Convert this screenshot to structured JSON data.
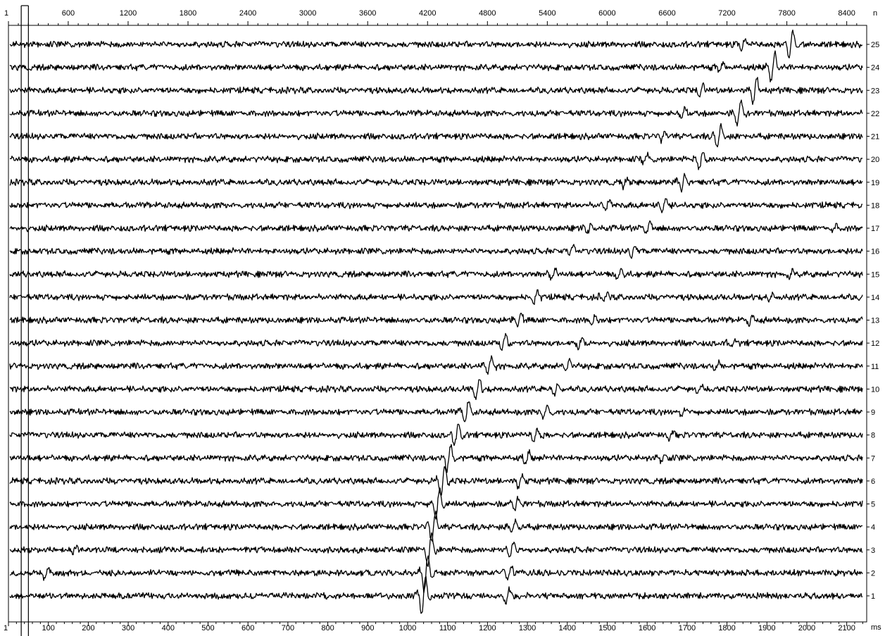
{
  "chart_data": {
    "type": "line",
    "title": "",
    "top_axis": {
      "unit": "n",
      "range": [
        1,
        8600
      ],
      "ticks": [
        {
          "value": 1,
          "label": "1"
        },
        {
          "value": 600,
          "label": "600"
        },
        {
          "value": 1200,
          "label": "1200"
        },
        {
          "value": 1800,
          "label": "1800"
        },
        {
          "value": 2400,
          "label": "2400"
        },
        {
          "value": 3000,
          "label": "3000"
        },
        {
          "value": 3600,
          "label": "3600"
        },
        {
          "value": 4200,
          "label": "4200"
        },
        {
          "value": 4800,
          "label": "4800"
        },
        {
          "value": 5400,
          "label": "5400"
        },
        {
          "value": 6000,
          "label": "6000"
        },
        {
          "value": 6600,
          "label": "6600"
        },
        {
          "value": 7200,
          "label": "7200"
        },
        {
          "value": 7800,
          "label": "7800"
        },
        {
          "value": 8400,
          "label": "8400"
        }
      ]
    },
    "bottom_axis": {
      "unit": "ms",
      "range": [
        0,
        2150
      ],
      "ticks": [
        {
          "value": 0,
          "label": "1"
        },
        {
          "value": 100,
          "label": "100"
        },
        {
          "value": 200,
          "label": "200"
        },
        {
          "value": 300,
          "label": "300"
        },
        {
          "value": 400,
          "label": "400"
        },
        {
          "value": 500,
          "label": "500"
        },
        {
          "value": 600,
          "label": "600"
        },
        {
          "value": 700,
          "label": "700"
        },
        {
          "value": 800,
          "label": "800"
        },
        {
          "value": 900,
          "label": "900"
        },
        {
          "value": 1000,
          "label": "1000"
        },
        {
          "value": 1100,
          "label": "1100"
        },
        {
          "value": 1200,
          "label": "1200"
        },
        {
          "value": 1300,
          "label": "1300"
        },
        {
          "value": 1400,
          "label": "1400"
        },
        {
          "value": 1500,
          "label": "1500"
        },
        {
          "value": 1600,
          "label": "1600"
        },
        {
          "value": 1700,
          "label": "1700"
        },
        {
          "value": 1800,
          "label": "1800"
        },
        {
          "value": 1900,
          "label": "1900"
        },
        {
          "value": 2000,
          "label": "2000"
        },
        {
          "value": 2100,
          "label": "2100"
        }
      ]
    },
    "trace_axis": {
      "labels": [
        "1",
        "2",
        "3",
        "4",
        "5",
        "6",
        "7",
        "8",
        "9",
        "10",
        "11",
        "12",
        "13",
        "14",
        "15",
        "16",
        "17",
        "18",
        "19",
        "20",
        "21",
        "22",
        "23",
        "24",
        "25"
      ]
    },
    "markers_ms": [
      32,
      50
    ],
    "series": [
      {
        "label": "1",
        "events": [
          {
            "t": 1040,
            "amp": 3.6
          },
          {
            "t": 1250,
            "amp": 1.3
          }
        ]
      },
      {
        "label": "2",
        "events": [
          {
            "t": 95,
            "amp": 1.2
          },
          {
            "t": 1046,
            "amp": 3.4
          },
          {
            "t": 1255,
            "amp": 1.3
          }
        ]
      },
      {
        "label": "3",
        "events": [
          {
            "t": 165,
            "amp": 0.7
          },
          {
            "t": 1055,
            "amp": 3.2
          },
          {
            "t": 1260,
            "amp": 1.3
          }
        ]
      },
      {
        "label": "4",
        "events": [
          {
            "t": 1065,
            "amp": 3.0
          },
          {
            "t": 1265,
            "amp": 1.2
          }
        ]
      },
      {
        "label": "5",
        "events": [
          {
            "t": 1075,
            "amp": 2.8
          },
          {
            "t": 1272,
            "amp": 1.2
          }
        ]
      },
      {
        "label": "6",
        "events": [
          {
            "t": 1088,
            "amp": 2.6
          },
          {
            "t": 1282,
            "amp": 1.2
          }
        ]
      },
      {
        "label": "7",
        "events": [
          {
            "t": 1103,
            "amp": 2.4
          },
          {
            "t": 1300,
            "amp": 1.2
          },
          {
            "t": 1640,
            "amp": 0.7
          }
        ]
      },
      {
        "label": "8",
        "events": [
          {
            "t": 1122,
            "amp": 2.2
          },
          {
            "t": 1320,
            "amp": 1.2
          },
          {
            "t": 1660,
            "amp": 0.7
          }
        ]
      },
      {
        "label": "9",
        "events": [
          {
            "t": 1148,
            "amp": 2.0
          },
          {
            "t": 1345,
            "amp": 1.2
          },
          {
            "t": 1690,
            "amp": 0.8
          }
        ]
      },
      {
        "label": "10",
        "events": [
          {
            "t": 1175,
            "amp": 1.8
          },
          {
            "t": 1372,
            "amp": 1.1
          },
          {
            "t": 1730,
            "amp": 0.8
          }
        ]
      },
      {
        "label": "11",
        "events": [
          {
            "t": 1205,
            "amp": 1.6
          },
          {
            "t": 1400,
            "amp": 1.1
          },
          {
            "t": 1775,
            "amp": 0.8
          }
        ]
      },
      {
        "label": "12",
        "events": [
          {
            "t": 1240,
            "amp": 1.4
          },
          {
            "t": 1432,
            "amp": 1.1
          },
          {
            "t": 1815,
            "amp": 0.8
          }
        ]
      },
      {
        "label": "13",
        "events": [
          {
            "t": 1280,
            "amp": 1.3
          },
          {
            "t": 1465,
            "amp": 1.0
          },
          {
            "t": 1860,
            "amp": 0.8
          }
        ]
      },
      {
        "label": "14",
        "events": [
          {
            "t": 1320,
            "amp": 1.2
          },
          {
            "t": 1495,
            "amp": 1.0
          },
          {
            "t": 1910,
            "amp": 0.7
          }
        ]
      },
      {
        "label": "15",
        "events": [
          {
            "t": 1365,
            "amp": 1.0
          },
          {
            "t": 1530,
            "amp": 1.1
          },
          {
            "t": 1960,
            "amp": 0.6
          }
        ]
      },
      {
        "label": "16",
        "events": [
          {
            "t": 1410,
            "amp": 0.9
          },
          {
            "t": 1565,
            "amp": 1.2
          }
        ]
      },
      {
        "label": "17",
        "events": [
          {
            "t": 1455,
            "amp": 0.9
          },
          {
            "t": 1602,
            "amp": 1.3
          },
          {
            "t": 2070,
            "amp": 0.6
          }
        ]
      },
      {
        "label": "18",
        "events": [
          {
            "t": 1500,
            "amp": 0.9
          },
          {
            "t": 1642,
            "amp": 1.4
          }
        ]
      },
      {
        "label": "19",
        "events": [
          {
            "t": 1545,
            "amp": 0.9
          },
          {
            "t": 1690,
            "amp": 1.6
          }
        ]
      },
      {
        "label": "20",
        "events": [
          {
            "t": 1595,
            "amp": 0.9
          },
          {
            "t": 1735,
            "amp": 1.8
          }
        ]
      },
      {
        "label": "21",
        "events": [
          {
            "t": 1640,
            "amp": 0.9
          },
          {
            "t": 1780,
            "amp": 2.0
          }
        ]
      },
      {
        "label": "22",
        "events": [
          {
            "t": 1690,
            "amp": 1.0
          },
          {
            "t": 1830,
            "amp": 2.2
          }
        ]
      },
      {
        "label": "23",
        "events": [
          {
            "t": 1735,
            "amp": 1.0
          },
          {
            "t": 1870,
            "amp": 2.4
          }
        ]
      },
      {
        "label": "24",
        "events": [
          {
            "t": 1785,
            "amp": 1.0
          },
          {
            "t": 1915,
            "amp": 2.6
          }
        ]
      },
      {
        "label": "25",
        "events": [
          {
            "t": 1840,
            "amp": 1.0
          },
          {
            "t": 1960,
            "amp": 2.8
          }
        ]
      }
    ]
  }
}
